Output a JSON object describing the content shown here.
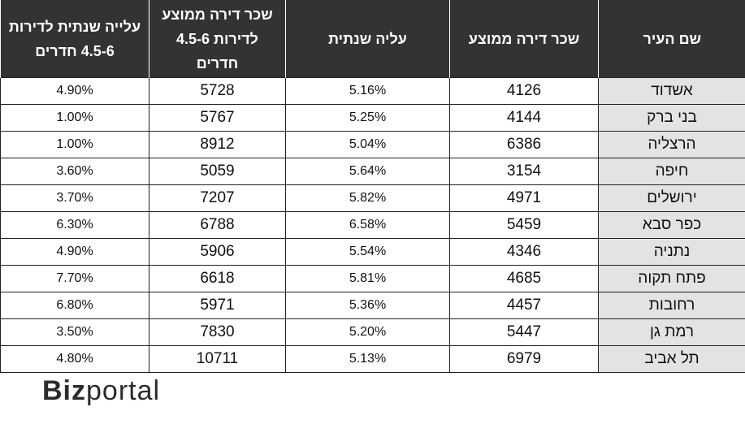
{
  "table": {
    "header": [
      "שם העיר",
      "שכר דירה ממוצע",
      "עליה שנתית",
      "שכר דירה ממוצע לדירות 4.5-6 חדרים",
      "עלייה שנתית לדירות 4.5-6 חדרים"
    ],
    "rows": [
      [
        "אשדוד",
        "4126",
        "5.16%",
        "5728",
        "4.90%"
      ],
      [
        "בני ברק",
        "4144",
        "5.25%",
        "5767",
        "1.00%"
      ],
      [
        "הרצליה",
        "6386",
        "5.04%",
        "8912",
        "1.00%"
      ],
      [
        "חיפה",
        "3154",
        "5.64%",
        "5059",
        "3.60%"
      ],
      [
        "ירושלים",
        "4971",
        "5.82%",
        "7207",
        "3.70%"
      ],
      [
        "כפר סבא",
        "5459",
        "6.58%",
        "6788",
        "6.30%"
      ],
      [
        "נתניה",
        "4346",
        "5.54%",
        "5906",
        "4.90%"
      ],
      [
        "פתח תקוה",
        "4685",
        "5.81%",
        "6618",
        "7.70%"
      ],
      [
        "רחובות",
        "4457",
        "5.36%",
        "5971",
        "6.80%"
      ],
      [
        "רמת גן",
        "5447",
        "5.20%",
        "7830",
        "3.50%"
      ],
      [
        "תל אביב",
        "6979",
        "5.13%",
        "10711",
        "4.80%"
      ]
    ]
  },
  "logo": {
    "bold": "Biz",
    "light": "portal"
  }
}
